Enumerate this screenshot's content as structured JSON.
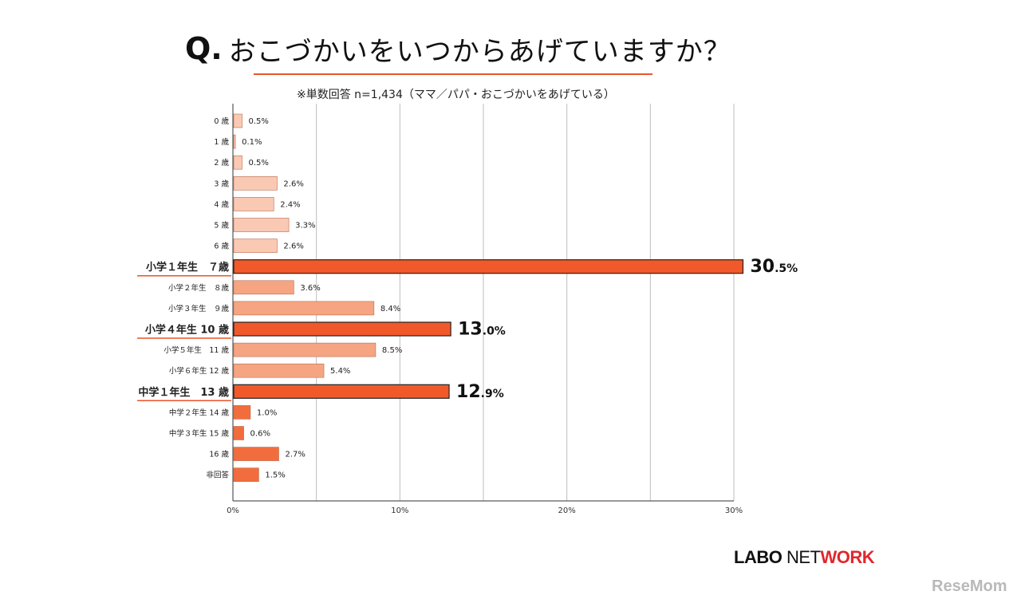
{
  "title": {
    "q_mark": "Q.",
    "text": "おこづかいをいつからあげていますか？"
  },
  "note": "※単数回答 n=1,434（ママ／パパ・おこづかいをあげている）",
  "logos": {
    "labo": "LABO",
    "net": "NET",
    "work": "WORK",
    "resemom": "ReseMom"
  },
  "colors": {
    "accent": "#e8552a",
    "pale": "#f9c9b3",
    "mid": "#f6a583",
    "strong": "#f26d3d",
    "highlight": "#f1592a"
  },
  "chart_data": {
    "type": "bar",
    "orientation": "horizontal",
    "categories": [
      "0 歳",
      "1 歳",
      "2 歳",
      "3 歳",
      "4 歳",
      "5 歳",
      "6 歳",
      "小学１年生　７歳",
      "小学２年生　８歳",
      "小学３年生　９歳",
      "小学４年生  10 歳",
      "小学５年生　11 歳",
      "小学６年生  12 歳",
      "中学１年生　13 歳",
      "中学２年生  14 歳",
      "中学３年生  15 歳",
      "16 歳",
      "非回答"
    ],
    "values": [
      0.5,
      0.1,
      0.5,
      2.6,
      2.4,
      3.3,
      2.6,
      30.5,
      3.6,
      8.4,
      13.0,
      8.5,
      5.4,
      12.9,
      1.0,
      0.6,
      2.7,
      1.5
    ],
    "data_labels": [
      "0.5%",
      "0.1%",
      "0.5%",
      "2.6%",
      "2.4%",
      "3.3%",
      "2.6%",
      "30.5%",
      "3.6%",
      "8.4%",
      "13.0%",
      "8.5%",
      "5.4%",
      "12.9%",
      "1.0%",
      "0.6%",
      "2.7%",
      "1.5%"
    ],
    "highlighted": [
      7,
      10,
      13
    ],
    "xlim": [
      0,
      30
    ],
    "xticks": [
      "0%",
      "10%",
      "20%",
      "30%"
    ],
    "grid": true,
    "xlabel": "",
    "ylabel": ""
  }
}
